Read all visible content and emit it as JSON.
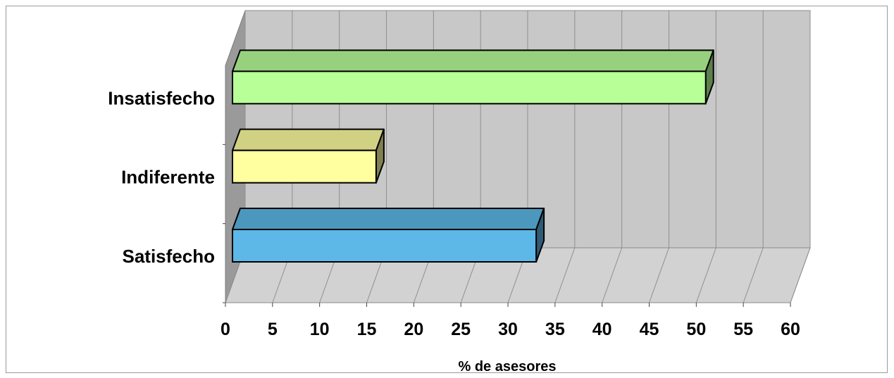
{
  "chart_data": {
    "type": "bar",
    "orientation": "horizontal",
    "style": "3d",
    "title": "",
    "xlabel": "% de asesores",
    "ylabel": "",
    "xlim": [
      0,
      60
    ],
    "xticks": [
      "0",
      "5",
      "10",
      "15",
      "20",
      "25",
      "30",
      "35",
      "40",
      "45",
      "50",
      "55",
      "60"
    ],
    "categories": [
      "Satisfecho",
      "Indiferente",
      "Insatisfecho"
    ],
    "values": [
      33,
      16,
      51
    ],
    "colors": [
      "#5DB8E8",
      "#FFFFA0",
      "#B8FF98"
    ],
    "grid": true,
    "legend": "none"
  }
}
